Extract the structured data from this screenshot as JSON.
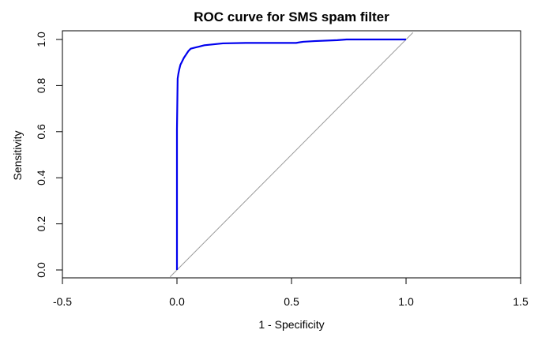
{
  "chart_data": {
    "type": "line",
    "title": "ROC curve for SMS spam filter",
    "xlabel": "1 - Specificity",
    "ylabel": "Sensitivity",
    "xlim": [
      -0.5,
      1.5
    ],
    "ylim": [
      0.0,
      1.0
    ],
    "xticks": [
      "-0.5",
      "0.0",
      "0.5",
      "1.0",
      "1.5"
    ],
    "yticks": [
      "0.0",
      "0.2",
      "0.4",
      "0.6",
      "0.8",
      "1.0"
    ],
    "grid": false,
    "colors": {
      "roc": "#0000ee",
      "reference": "#999999"
    },
    "reference_line": {
      "x": [
        -0.03,
        1.03
      ],
      "y": [
        -0.03,
        1.03
      ]
    },
    "series": [
      {
        "points": [
          [
            0.0,
            0.0
          ],
          [
            0.0,
            0.61
          ],
          [
            0.003,
            0.83
          ],
          [
            0.006,
            0.85
          ],
          [
            0.01,
            0.87
          ],
          [
            0.015,
            0.89
          ],
          [
            0.02,
            0.9
          ],
          [
            0.03,
            0.92
          ],
          [
            0.04,
            0.935
          ],
          [
            0.05,
            0.95
          ],
          [
            0.06,
            0.96
          ],
          [
            0.08,
            0.965
          ],
          [
            0.1,
            0.97
          ],
          [
            0.12,
            0.975
          ],
          [
            0.15,
            0.978
          ],
          [
            0.2,
            0.983
          ],
          [
            0.3,
            0.985
          ],
          [
            0.52,
            0.985
          ],
          [
            0.55,
            0.99
          ],
          [
            0.6,
            0.993
          ],
          [
            0.7,
            0.997
          ],
          [
            0.74,
            1.0
          ],
          [
            1.0,
            1.0
          ]
        ]
      }
    ]
  }
}
